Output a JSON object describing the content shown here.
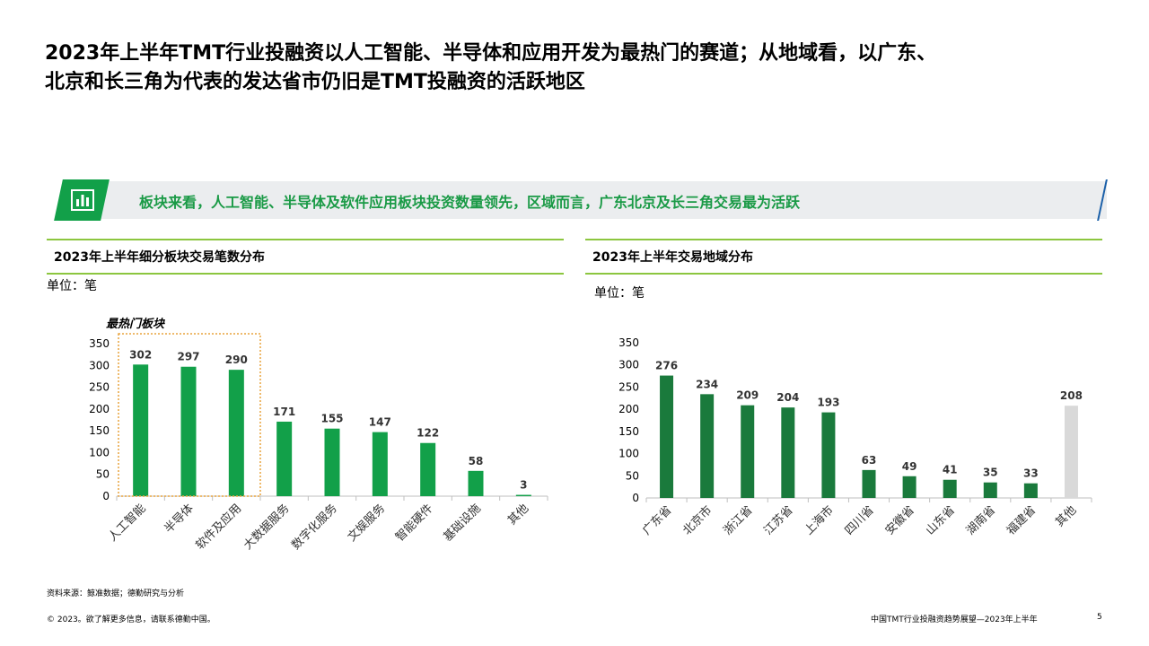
{
  "title": {
    "line1": "2023年上半年TMT行业投融资以人工智能、半导体和应用开发为最热门的赛道；从地域看，以广东、",
    "line2": "北京和长三角为代表的发达省市仍旧是TMT投融资的活跃地区"
  },
  "banner": {
    "icon": "bar-chart-icon",
    "text": "板块来看，人工智能、半导体及软件应用板块投资数量领先，区域而言，广东北京及长三角交易最为活跃",
    "accent_color": "#12a049"
  },
  "left_panel": {
    "title": "2023年上半年细分板块交易笔数分布",
    "unit": "单位：笔"
  },
  "right_panel": {
    "title": "2023年上半年交易地域分布",
    "unit": "单位：笔"
  },
  "chart_data": [
    {
      "type": "bar",
      "title": "2023年上半年细分板块交易笔数分布",
      "categories": [
        "人工智能",
        "半导体",
        "软件及应用",
        "大数据服务",
        "数字化服务",
        "文娱服务",
        "智能硬件",
        "基础设施",
        "其他"
      ],
      "values": [
        302,
        297,
        290,
        171,
        155,
        147,
        122,
        58,
        3
      ],
      "yticks": [
        0,
        50,
        100,
        150,
        200,
        250,
        300,
        350
      ],
      "ylim": [
        0,
        350
      ],
      "bar_color": "#12a049",
      "highlight": {
        "label": "最热门板块",
        "categories": [
          "人工智能",
          "半导体",
          "软件及应用"
        ],
        "color": "#e8a33d"
      },
      "grid": false,
      "legend": "none"
    },
    {
      "type": "bar",
      "title": "2023年上半年交易地域分布",
      "categories": [
        "广东省",
        "北京市",
        "浙江省",
        "江苏省",
        "上海市",
        "四川省",
        "安徽省",
        "山东省",
        "湖南省",
        "福建省",
        "其他"
      ],
      "values": [
        276,
        234,
        209,
        204,
        193,
        63,
        49,
        41,
        35,
        33,
        208
      ],
      "yticks": [
        0,
        50,
        100,
        150,
        200,
        250,
        300,
        350
      ],
      "ylim": [
        0,
        350
      ],
      "bar_color": "#1a7a3c",
      "other_color": "#d9d9d9",
      "grid": false,
      "legend": "none"
    }
  ],
  "source": "资料来源：鲸准数据；德勤研究与分析",
  "footer": {
    "left": "© 2023。欲了解更多信息，请联系德勤中国。",
    "right": "中国TMT行业投融资趋势展望—2023年上半年",
    "page": "5"
  }
}
